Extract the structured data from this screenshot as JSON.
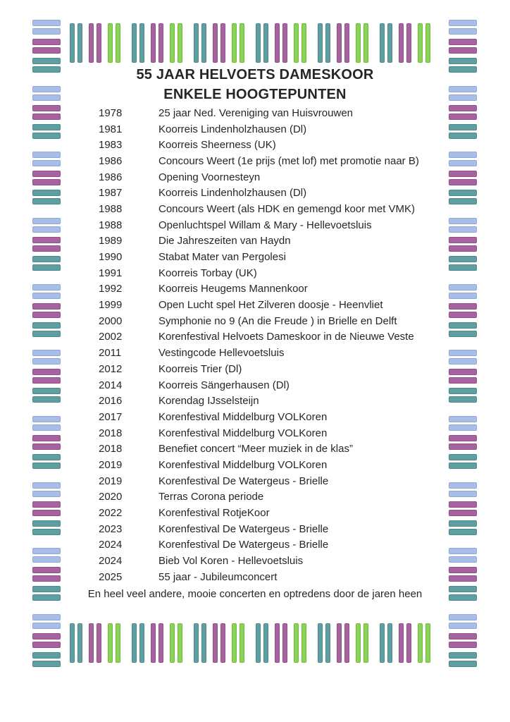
{
  "page": {
    "title_line1": "55 JAAR HELVOETS DAMESKOOR",
    "title_line2": "ENKELE HOOGTEPUNTEN",
    "footer": "En heel veel andere, mooie concerten en optredens door de jaren heen"
  },
  "events": [
    {
      "year": "1978",
      "description": "25 jaar Ned. Vereniging van Huisvrouwen"
    },
    {
      "year": "1981",
      "description": "Koorreis Lindenholzhausen (Dl)"
    },
    {
      "year": "1983",
      "description": "Koorreis Sheerness (UK)"
    },
    {
      "year": "1986",
      "description": "Concours Weert  (1e prijs (met lof) met promotie naar B)"
    },
    {
      "year": "1986",
      "description": "Opening Voornesteyn"
    },
    {
      "year": "1987",
      "description": "Koorreis Lindenholzhausen (Dl)"
    },
    {
      "year": "1988",
      "description": "Concours Weert (als HDK en gemengd koor met VMK)"
    },
    {
      "year": "1988",
      "description": "Openluchtspel Willam & Mary  - Hellevoetsluis"
    },
    {
      "year": "1989",
      "description": "Die Jahreszeiten van Haydn"
    },
    {
      "year": "1990",
      "description": "Stabat Mater van Pergolesi"
    },
    {
      "year": "1991",
      "description": "Koorreis Torbay (UK)"
    },
    {
      "year": "1992",
      "description": "Koorreis Heugems Mannenkoor"
    },
    {
      "year": "1999",
      "description": "Open Lucht spel Het Zilveren doosje - Heenvliet"
    },
    {
      "year": "2000",
      "description": "Symphonie no 9 (An die Freude ) in Brielle en Delft"
    },
    {
      "year": "2002",
      "description": "Korenfestival Helvoets Dameskoor in de Nieuwe Veste"
    },
    {
      "year": "2011",
      "description": "Vestingcode Hellevoetsluis"
    },
    {
      "year": "2012",
      "description": "Koorreis Trier (Dl)"
    },
    {
      "year": "2014",
      "description": "Koorreis  Sängerhausen (Dl)"
    },
    {
      "year": "2016",
      "description": "Korendag IJsselsteijn"
    },
    {
      "year": "2017",
      "description": "Korenfestival Middelburg VOLKoren"
    },
    {
      "year": "2018",
      "description": "Korenfestival Middelburg VOLKoren"
    },
    {
      "year": "2018",
      "description": "Benefiet concert “Meer muziek in de klas”"
    },
    {
      "year": "2019",
      "description": "Korenfestival Middelburg VOLKoren"
    },
    {
      "year": "2019",
      "description": "Korenfestival De Watergeus - Brielle"
    },
    {
      "year": "2020",
      "description": "Terras Corona periode"
    },
    {
      "year": "2022",
      "description": "Korenfestival RotjeKoor"
    },
    {
      "year": "2023",
      "description": "Korenfestival De Watergeus - Brielle"
    },
    {
      "year": "2024",
      "description": "Korenfestival De Watergeus - Brielle"
    },
    {
      "year": "2024",
      "description": "Bieb Vol Koren - Hellevoetsluis"
    },
    {
      "year": "2025",
      "description": "55 jaar - Jubileumconcert"
    }
  ],
  "decor": {
    "colors": {
      "blue": {
        "fill": "#a8bde8",
        "edge": "#8ea7d8"
      },
      "purple": {
        "fill": "#a7639f",
        "edge": "#934f8b"
      },
      "teal": {
        "fill": "#5f9ea1",
        "edge": "#4c898c"
      },
      "green": {
        "fill": "#8ad356",
        "edge": "#6cbe3a"
      }
    },
    "horizontal_sequence": [
      "blue",
      "purple",
      "teal"
    ],
    "vertical_sequence": [
      "teal",
      "purple",
      "green"
    ],
    "side_groups": 10,
    "edge_groups": 6
  }
}
